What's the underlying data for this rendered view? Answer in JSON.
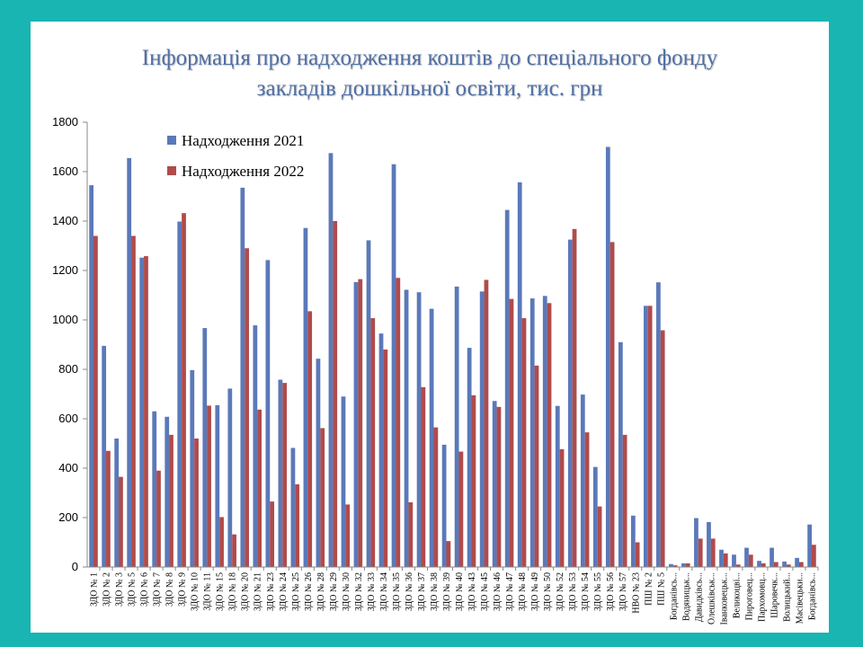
{
  "chart_data": {
    "type": "bar",
    "title": "Інформація про надходження коштів до спеціального фонду закладів дошкільної освіти, тис. грн",
    "title_lines": [
      "Інформація про надходження коштів до спеціального фонду",
      "закладів дошкільної освіти, тис. грн"
    ],
    "ylim": [
      0,
      1800
    ],
    "yticks": [
      0,
      200,
      400,
      600,
      800,
      1000,
      1200,
      1400,
      1600,
      1800
    ],
    "grid": false,
    "legend_position": "top-left",
    "categories": [
      "ЗДО № 1",
      "ЗДО № 2",
      "ЗДО № 3",
      "ЗДО № 5",
      "ЗДО № 6",
      "ЗДО № 7",
      "ЗДО № 8",
      "ЗДО № 9",
      "ЗДО № 10",
      "ЗДО № 11",
      "ЗДО № 15",
      "ЗДО № 18",
      "ЗДО № 20",
      "ЗДО № 21",
      "ЗДО № 23",
      "ЗДО № 24",
      "ЗДО № 25",
      "ЗДО № 26",
      "ЗДО № 28",
      "ЗДО № 29",
      "ЗДО № 30",
      "ЗДО № 32",
      "ЗДО № 33",
      "ЗДО № 34",
      "ЗДО № 35",
      "ЗДО № 36",
      "ЗДО № 37",
      "ЗДО № 38",
      "ЗДО № 39",
      "ЗДО № 40",
      "ЗДО № 43",
      "ЗДО № 45",
      "ЗДО № 46",
      "ЗДО № 47",
      "ЗДО № 48",
      "ЗДО № 49",
      "ЗДО № 50",
      "ЗДО № 52",
      "ЗДО № 53",
      "ЗДО № 54",
      "ЗДО № 55",
      "ЗДО № 56",
      "ЗДО № 57",
      "НВО № 23",
      "ПШ № 2",
      "ПШ № 5",
      "Богданівсь...",
      "Водяницьк...",
      "Давидківсь...",
      "Олешківськ...",
      "Іванковецьк...",
      "Великоцві...",
      "Пироговец...",
      "Пархомовц...",
      "Шаровечк...",
      "Волицький...",
      "Масівецьки...",
      "Богданівсь..."
    ],
    "series": [
      {
        "name": "Надходження 2021",
        "color": "#5b79b9",
        "values": [
          1545,
          895,
          520,
          1655,
          1252,
          630,
          608,
          1398,
          797,
          967,
          655,
          722,
          1535,
          978,
          1242,
          758,
          482,
          1372,
          843,
          1675,
          690,
          1153,
          1322,
          945,
          1630,
          1122,
          1112,
          1045,
          495,
          1135,
          887,
          1115,
          672,
          1445,
          1557,
          1087,
          1097,
          652,
          1325,
          698,
          405,
          1700,
          910,
          208,
          1057,
          1152,
          12,
          15,
          198,
          182,
          70,
          50,
          78,
          25,
          78,
          22,
          37,
          172
        ]
      },
      {
        "name": "Надходження 2022",
        "color": "#b04b4b",
        "values": [
          1340,
          470,
          365,
          1340,
          1258,
          390,
          535,
          1432,
          520,
          653,
          202,
          132,
          1290,
          637,
          265,
          745,
          335,
          1035,
          562,
          1400,
          253,
          1165,
          1007,
          880,
          1170,
          262,
          728,
          565,
          105,
          467,
          695,
          1162,
          648,
          1085,
          1007,
          815,
          1068,
          477,
          1368,
          545,
          245,
          1315,
          535,
          100,
          1057,
          958,
          7,
          15,
          115,
          115,
          55,
          10,
          50,
          15,
          20,
          10,
          20,
          90
        ]
      }
    ]
  }
}
